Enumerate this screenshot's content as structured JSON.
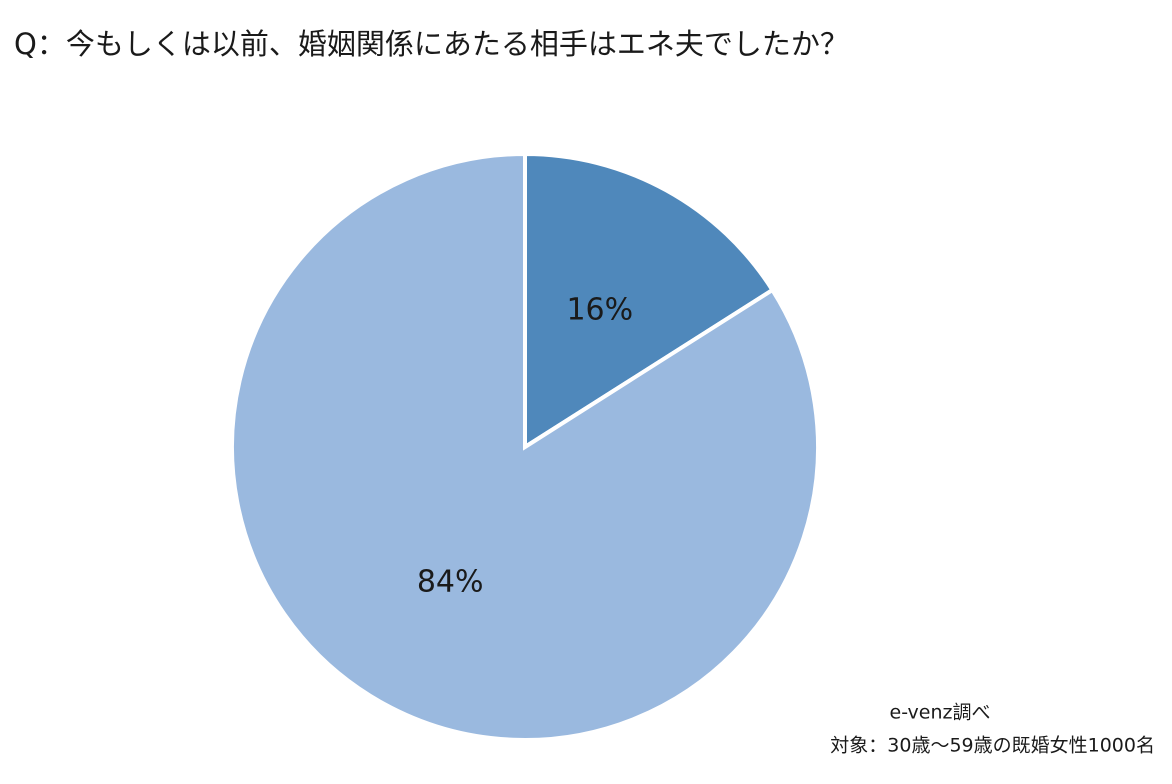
{
  "chart_data": {
    "type": "pie",
    "title": "Q：今もしくは以前、婚姻関係にあたる相手はエネ夫でしたか？",
    "values": [
      16,
      84
    ],
    "value_labels": [
      "16%",
      "84%"
    ],
    "colors": [
      "#4f88bb",
      "#9ab9df"
    ],
    "source": "e-venz調べ",
    "note": "対象：30歳〜59歳の既婚女性1000名"
  }
}
